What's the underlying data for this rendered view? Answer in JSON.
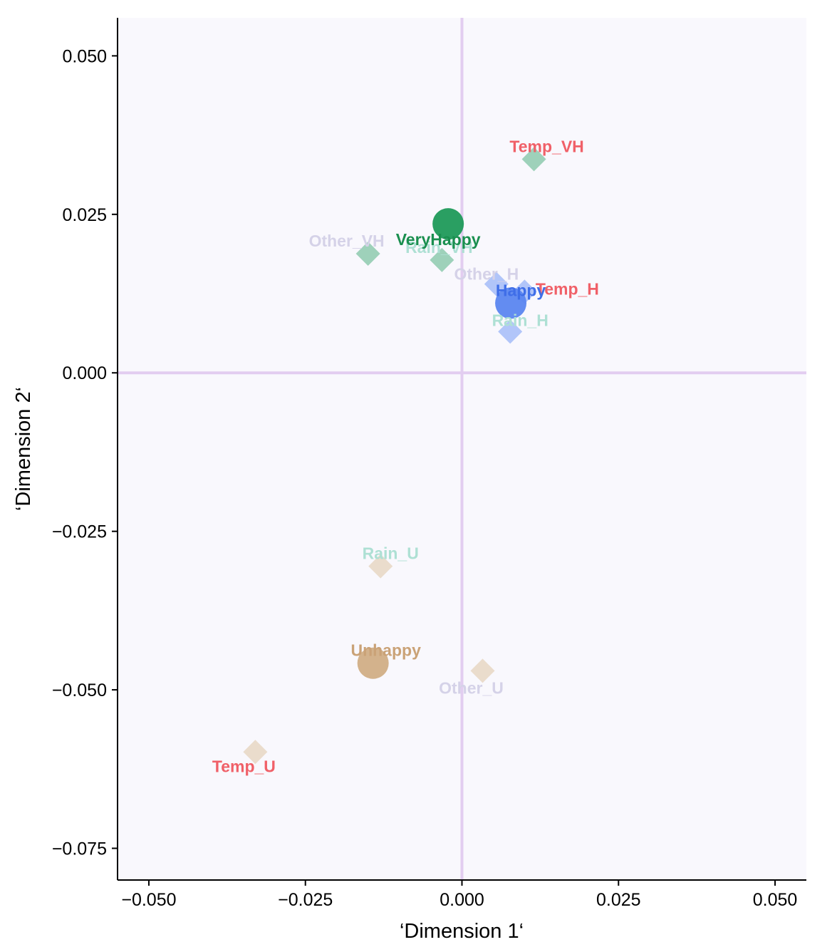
{
  "chart_data": {
    "type": "scatter",
    "xlabel": "‘Dimension 1‘",
    "ylabel": "‘Dimension 2‘",
    "xlim": [
      -0.055,
      0.055
    ],
    "ylim": [
      -0.08,
      0.056
    ],
    "xticks": [
      -0.05,
      -0.025,
      0,
      0.025,
      0.05
    ],
    "yticks": [
      0.05,
      0.025,
      0,
      -0.025,
      -0.05,
      -0.075
    ],
    "xtick_labels": [
      "−0.050",
      "−0.025",
      "0.000",
      "0.025",
      "0.050"
    ],
    "ytick_labels": [
      "0.050",
      "0.025",
      "0.000",
      "−0.025",
      "−0.050",
      "−0.075"
    ],
    "reference_lines": {
      "x": 0,
      "y": 0,
      "color": "#e2cdf0"
    },
    "plot_background": "#f9f8fd",
    "categories": [
      {
        "name": "VeryHappy",
        "x": -0.0022,
        "y": 0.0235,
        "color": "#1f9a5a",
        "label_color": "#1a8f4f",
        "marker": "circle"
      },
      {
        "name": "Happy",
        "x": 0.0078,
        "y": 0.011,
        "color": "#5b86f0",
        "label_color": "#3f6ee8",
        "marker": "circle"
      },
      {
        "name": "Unhappy",
        "x": -0.0142,
        "y": -0.0458,
        "color": "#d1ae86",
        "label_color": "#caa277",
        "marker": "circle"
      }
    ],
    "variables": [
      {
        "name": "Temp_VH",
        "x": 0.0115,
        "y": 0.0337,
        "color": "#93ccb2",
        "label_color": "#f06068"
      },
      {
        "name": "Other_VH",
        "x": -0.015,
        "y": 0.0188,
        "color": "#93ccb2",
        "label_color": "#d5d2e8"
      },
      {
        "name": "Rain_VH",
        "x": -0.0032,
        "y": 0.0178,
        "color": "#93ccb2",
        "label_color": "#aee0d4"
      },
      {
        "name": "Other_H",
        "x": 0.0055,
        "y": 0.014,
        "color": "#a9bff8",
        "label_color": "#d5d2e8"
      },
      {
        "name": "Temp_H",
        "x": 0.01,
        "y": 0.0128,
        "color": "#a9bff8",
        "label_color": "#f06068"
      },
      {
        "name": "Rain_H",
        "x": 0.0077,
        "y": 0.0065,
        "color": "#a9bff8",
        "label_color": "#aee0d4"
      },
      {
        "name": "Rain_U",
        "x": -0.013,
        "y": -0.0305,
        "color": "#e8d8c6",
        "label_color": "#aee0d4"
      },
      {
        "name": "Other_U",
        "x": 0.0033,
        "y": -0.047,
        "color": "#e8d8c6",
        "label_color": "#d5d2e8"
      },
      {
        "name": "Temp_U",
        "x": -0.033,
        "y": -0.0598,
        "color": "#e8d8c6",
        "label_color": "#f06068"
      }
    ]
  }
}
